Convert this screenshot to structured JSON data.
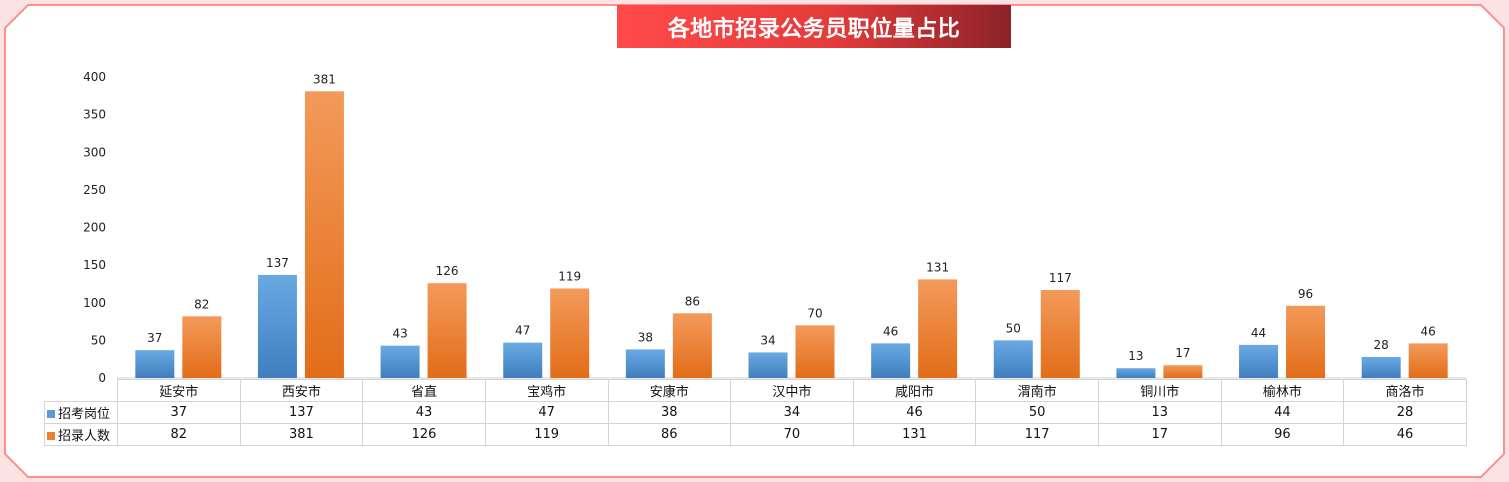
{
  "title": "各地市招录公务员职位量占比",
  "colors": {
    "series_1": "#5b9bd5",
    "series_2": "#ed7d31",
    "banner_start": "#ff4a4a",
    "banner_end": "#8c2228",
    "frame": "#ff8f8f"
  },
  "chart_data": {
    "type": "bar",
    "title": "各地市招录公务员职位量占比",
    "categories": [
      "延安市",
      "西安市",
      "省直",
      "宝鸡市",
      "安康市",
      "汉中市",
      "咸阳市",
      "渭南市",
      "铜川市",
      "榆林市",
      "商洛市"
    ],
    "series": [
      {
        "name": "招考岗位",
        "values": [
          37,
          137,
          43,
          47,
          38,
          34,
          46,
          50,
          13,
          44,
          28
        ]
      },
      {
        "name": "招录人数",
        "values": [
          82,
          381,
          126,
          119,
          86,
          70,
          131,
          117,
          17,
          96,
          46
        ]
      }
    ],
    "ylim": [
      0,
      400
    ],
    "yticks": [
      0,
      50,
      100,
      150,
      200,
      250,
      300,
      350,
      400
    ],
    "grid": false,
    "data_labels": true,
    "legend": "data-table"
  }
}
